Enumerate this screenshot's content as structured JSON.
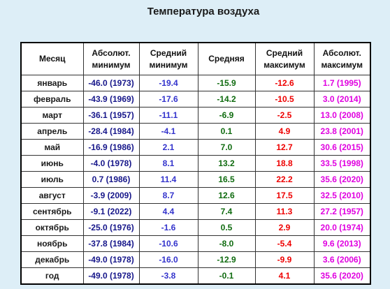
{
  "title": "Температура воздуха",
  "columns": [
    [
      "Месяц"
    ],
    [
      "Абсолют.",
      "минимум"
    ],
    [
      "Средний",
      "минимум"
    ],
    [
      "Средняя"
    ],
    [
      "Средний",
      "максимум"
    ],
    [
      "Абсолют.",
      "максимум"
    ]
  ],
  "rows": [
    [
      "январь",
      "-46.0 (1973)",
      "-19.4",
      "-15.9",
      "-12.6",
      "1.7 (1995)"
    ],
    [
      "февраль",
      "-43.9 (1969)",
      "-17.6",
      "-14.2",
      "-10.5",
      "3.0 (2014)"
    ],
    [
      "март",
      "-36.1 (1957)",
      "-11.1",
      "-6.9",
      "-2.5",
      "13.0 (2008)"
    ],
    [
      "апрель",
      "-28.4 (1984)",
      "-4.1",
      "0.1",
      "4.9",
      "23.8 (2001)"
    ],
    [
      "май",
      "-16.9 (1986)",
      "2.1",
      "7.0",
      "12.7",
      "30.6 (2015)"
    ],
    [
      "июнь",
      "-4.0 (1978)",
      "8.1",
      "13.2",
      "18.8",
      "33.5 (1998)"
    ],
    [
      "июль",
      "0.7 (1986)",
      "11.4",
      "16.5",
      "22.2",
      "35.6 (2020)"
    ],
    [
      "август",
      "-3.9 (2009)",
      "8.7",
      "12.6",
      "17.5",
      "32.5 (2010)"
    ],
    [
      "сентябрь",
      "-9.1 (2022)",
      "4.4",
      "7.4",
      "11.3",
      "27.2 (1957)"
    ],
    [
      "октябрь",
      "-25.0 (1976)",
      "-1.6",
      "0.5",
      "2.9",
      "20.0 (1974)"
    ],
    [
      "ноябрь",
      "-37.8 (1984)",
      "-10.6",
      "-8.0",
      "-5.4",
      "9.6 (2013)"
    ],
    [
      "декабрь",
      "-49.0 (1978)",
      "-16.0",
      "-12.9",
      "-9.9",
      "3.6 (2006)"
    ],
    [
      "год",
      "-49.0 (1978)",
      "-3.8",
      "-0.1",
      "4.1",
      "35.6 (2020)"
    ]
  ],
  "colors": {
    "background": "#ddeef7",
    "abs_min": "#16168a",
    "avg_min": "#3333cc",
    "avg": "#0f6b0f",
    "avg_max": "#ee0000",
    "abs_max": "#e000e0"
  }
}
